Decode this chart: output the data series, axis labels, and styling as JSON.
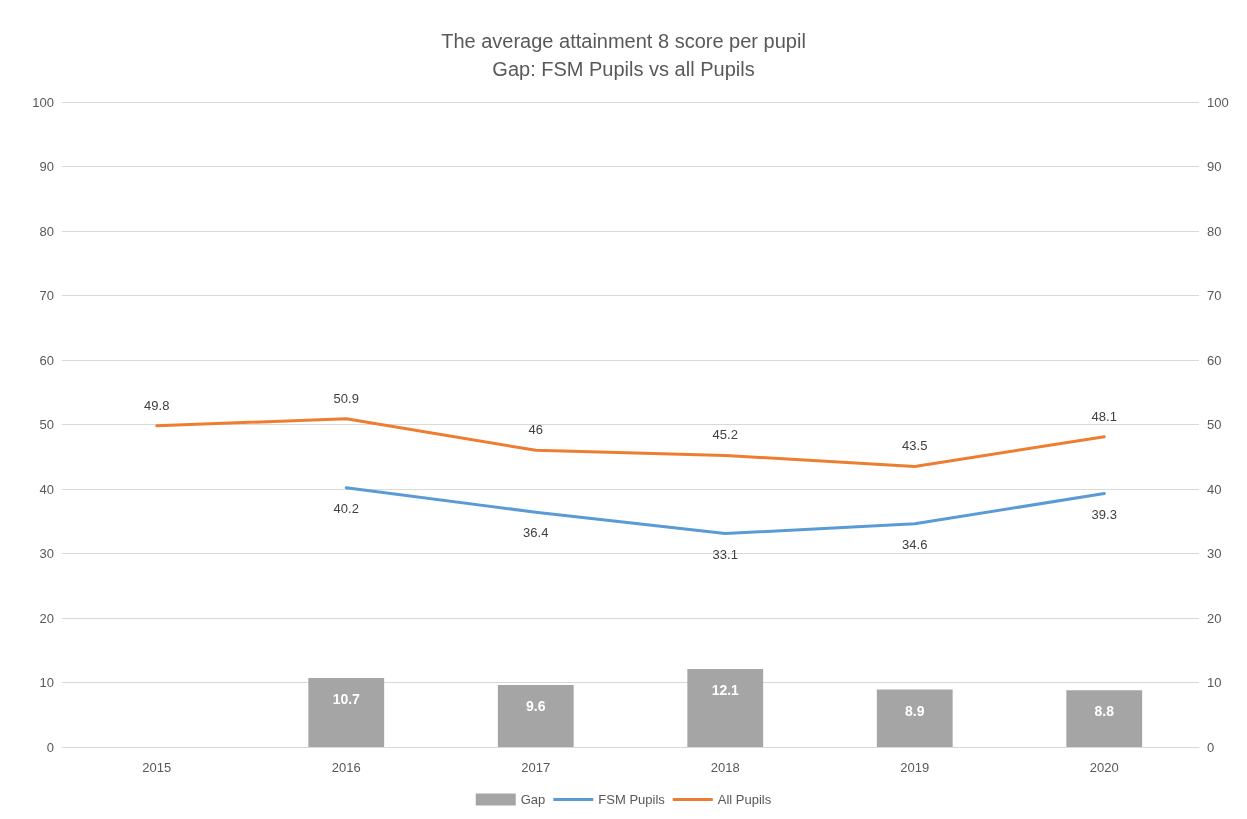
{
  "chart_data": {
    "type": "bar",
    "title": "The average attainment 8 score per pupil",
    "subtitle": "Gap: FSM Pupils vs all Pupils",
    "categories": [
      "2015",
      "2016",
      "2017",
      "2018",
      "2019",
      "2020"
    ],
    "series": [
      {
        "name": "Gap",
        "color": "#a5a5a5",
        "values": [
          null,
          10.7,
          9.6,
          12.1,
          8.9,
          8.8
        ]
      },
      {
        "name": "FSM Pupils",
        "type": "line",
        "color": "#5b9bd5",
        "values": [
          null,
          40.2,
          36.4,
          33.1,
          34.6,
          39.3
        ]
      },
      {
        "name": "All Pupils",
        "type": "line",
        "color": "#ed7d31",
        "values": [
          49.8,
          50.9,
          46,
          45.2,
          43.5,
          48.1
        ]
      }
    ],
    "ylim": [
      0,
      100
    ],
    "yticks": [
      0,
      10,
      20,
      30,
      40,
      50,
      60,
      70,
      80,
      90,
      100
    ],
    "y2lim": [
      0,
      100
    ],
    "y2ticks": [
      0,
      10,
      20,
      30,
      40,
      50,
      60,
      70,
      80,
      90,
      100
    ],
    "data_labels": true,
    "grid": "y",
    "legend": "bottom",
    "marker": "none",
    "line_style": "solid"
  }
}
